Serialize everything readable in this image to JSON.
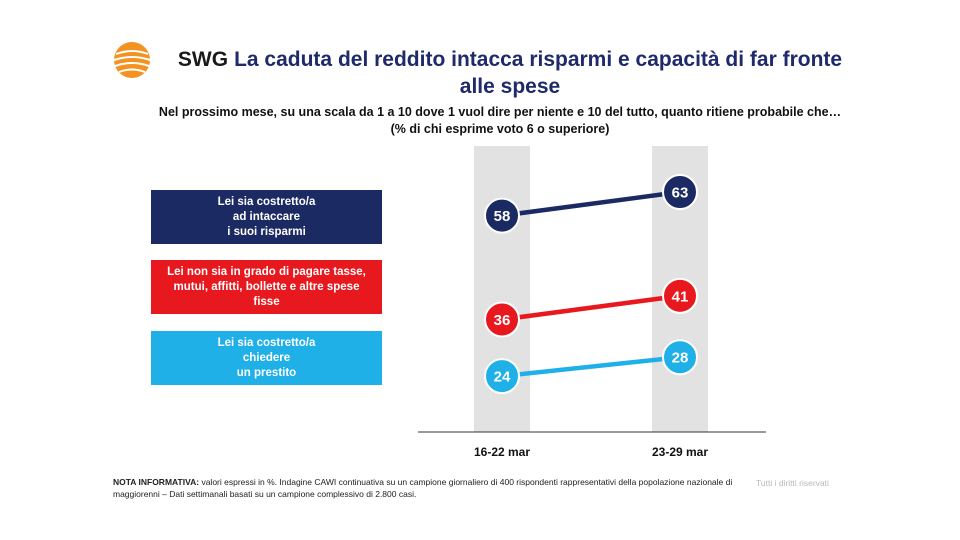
{
  "header": {
    "brand": "SWG",
    "title": "La caduta del reddito intacca risparmi e capacità di far fronte alle spese",
    "question_line1": "Nel prossimo mese, su una scala da 1 a 10 dove 1 vuol dire per niente e 10 del tutto, quanto ritiene probabile che…",
    "question_line2": "(% di chi esprime voto 6 o superiore)"
  },
  "colors": {
    "navy": "#1b2a63",
    "red": "#e8191e",
    "light_blue": "#1fb0e8",
    "column_band": "#e2e2e2",
    "logo_orange": "#f39221"
  },
  "chart_data": {
    "type": "line",
    "categories": [
      "16-22 mar",
      "23-29 mar"
    ],
    "series": [
      {
        "name": "Lei sia costretto/a\nad intaccare\ni suoi risparmi",
        "values": [
          58,
          63
        ],
        "color": "#1b2a63"
      },
      {
        "name": "Lei non sia in grado di pagare tasse,\nmutui, affitti, bollette e altre spese\nfisse",
        "values": [
          36,
          41
        ],
        "color": "#e8191e"
      },
      {
        "name": "Lei sia costretto/a\nchiedere\nun prestito",
        "values": [
          24,
          28
        ],
        "color": "#1fb0e8"
      }
    ],
    "data_labels": true,
    "grid": false,
    "legend_placement": "left"
  },
  "footer": {
    "note_label": "NOTA INFORMATIVA:",
    "note_text": " valori espressi in %. Indagine CAWI continuativa su un campione giornaliero di 400 rispondenti rappresentativi della popolazione nazionale di maggiorenni – Dati settimanali basati su un campione complessivo di 2.800 casi.",
    "rights": "Tutti i diritti riservati"
  }
}
